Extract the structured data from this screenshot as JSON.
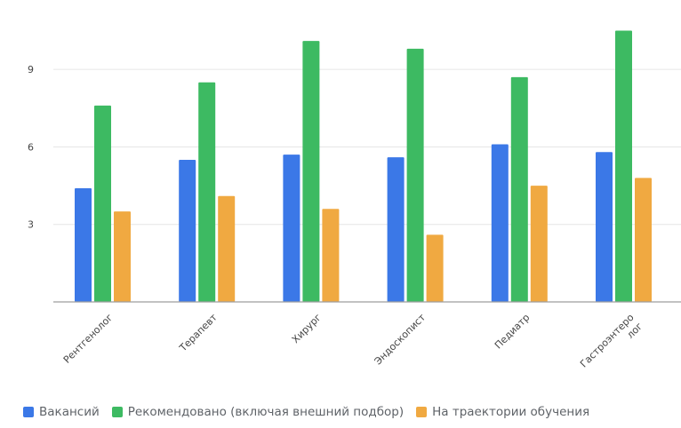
{
  "colors": {
    "grid": "#e6e6e6",
    "axis": "#9e9e9e",
    "tick_text": "#444444",
    "legend_text": "#5f6368"
  },
  "chart_data": {
    "type": "bar",
    "title": "",
    "xlabel": "",
    "ylabel": "",
    "ylim": [
      0,
      11
    ],
    "yticks": [
      3,
      6,
      9
    ],
    "grid": true,
    "legend_position": "bottom",
    "categories": [
      "Рентгенолог",
      "Терапевт",
      "Хирург",
      "Эндоскопист",
      "Педиатр",
      "Гастроэнтеролог"
    ],
    "category_labels": [
      [
        "Рентгенолог"
      ],
      [
        "Терапевт"
      ],
      [
        "Хирург"
      ],
      [
        "Эндоскопист"
      ],
      [
        "Педиатр"
      ],
      [
        "Гастроэнтеро",
        "лог"
      ]
    ],
    "series": [
      {
        "name": "Вакансий",
        "color": "#3b78e7",
        "values": [
          4.4,
          5.5,
          5.7,
          5.6,
          6.1,
          5.8
        ]
      },
      {
        "name": "Рекомендовано (включая внешний подбор)",
        "color": "#3dba62",
        "values": [
          7.6,
          8.5,
          10.1,
          9.8,
          8.7,
          10.5
        ]
      },
      {
        "name": "На траектории обучения",
        "color": "#f0a941",
        "values": [
          3.5,
          4.1,
          3.6,
          2.6,
          4.5,
          4.8
        ]
      }
    ]
  }
}
